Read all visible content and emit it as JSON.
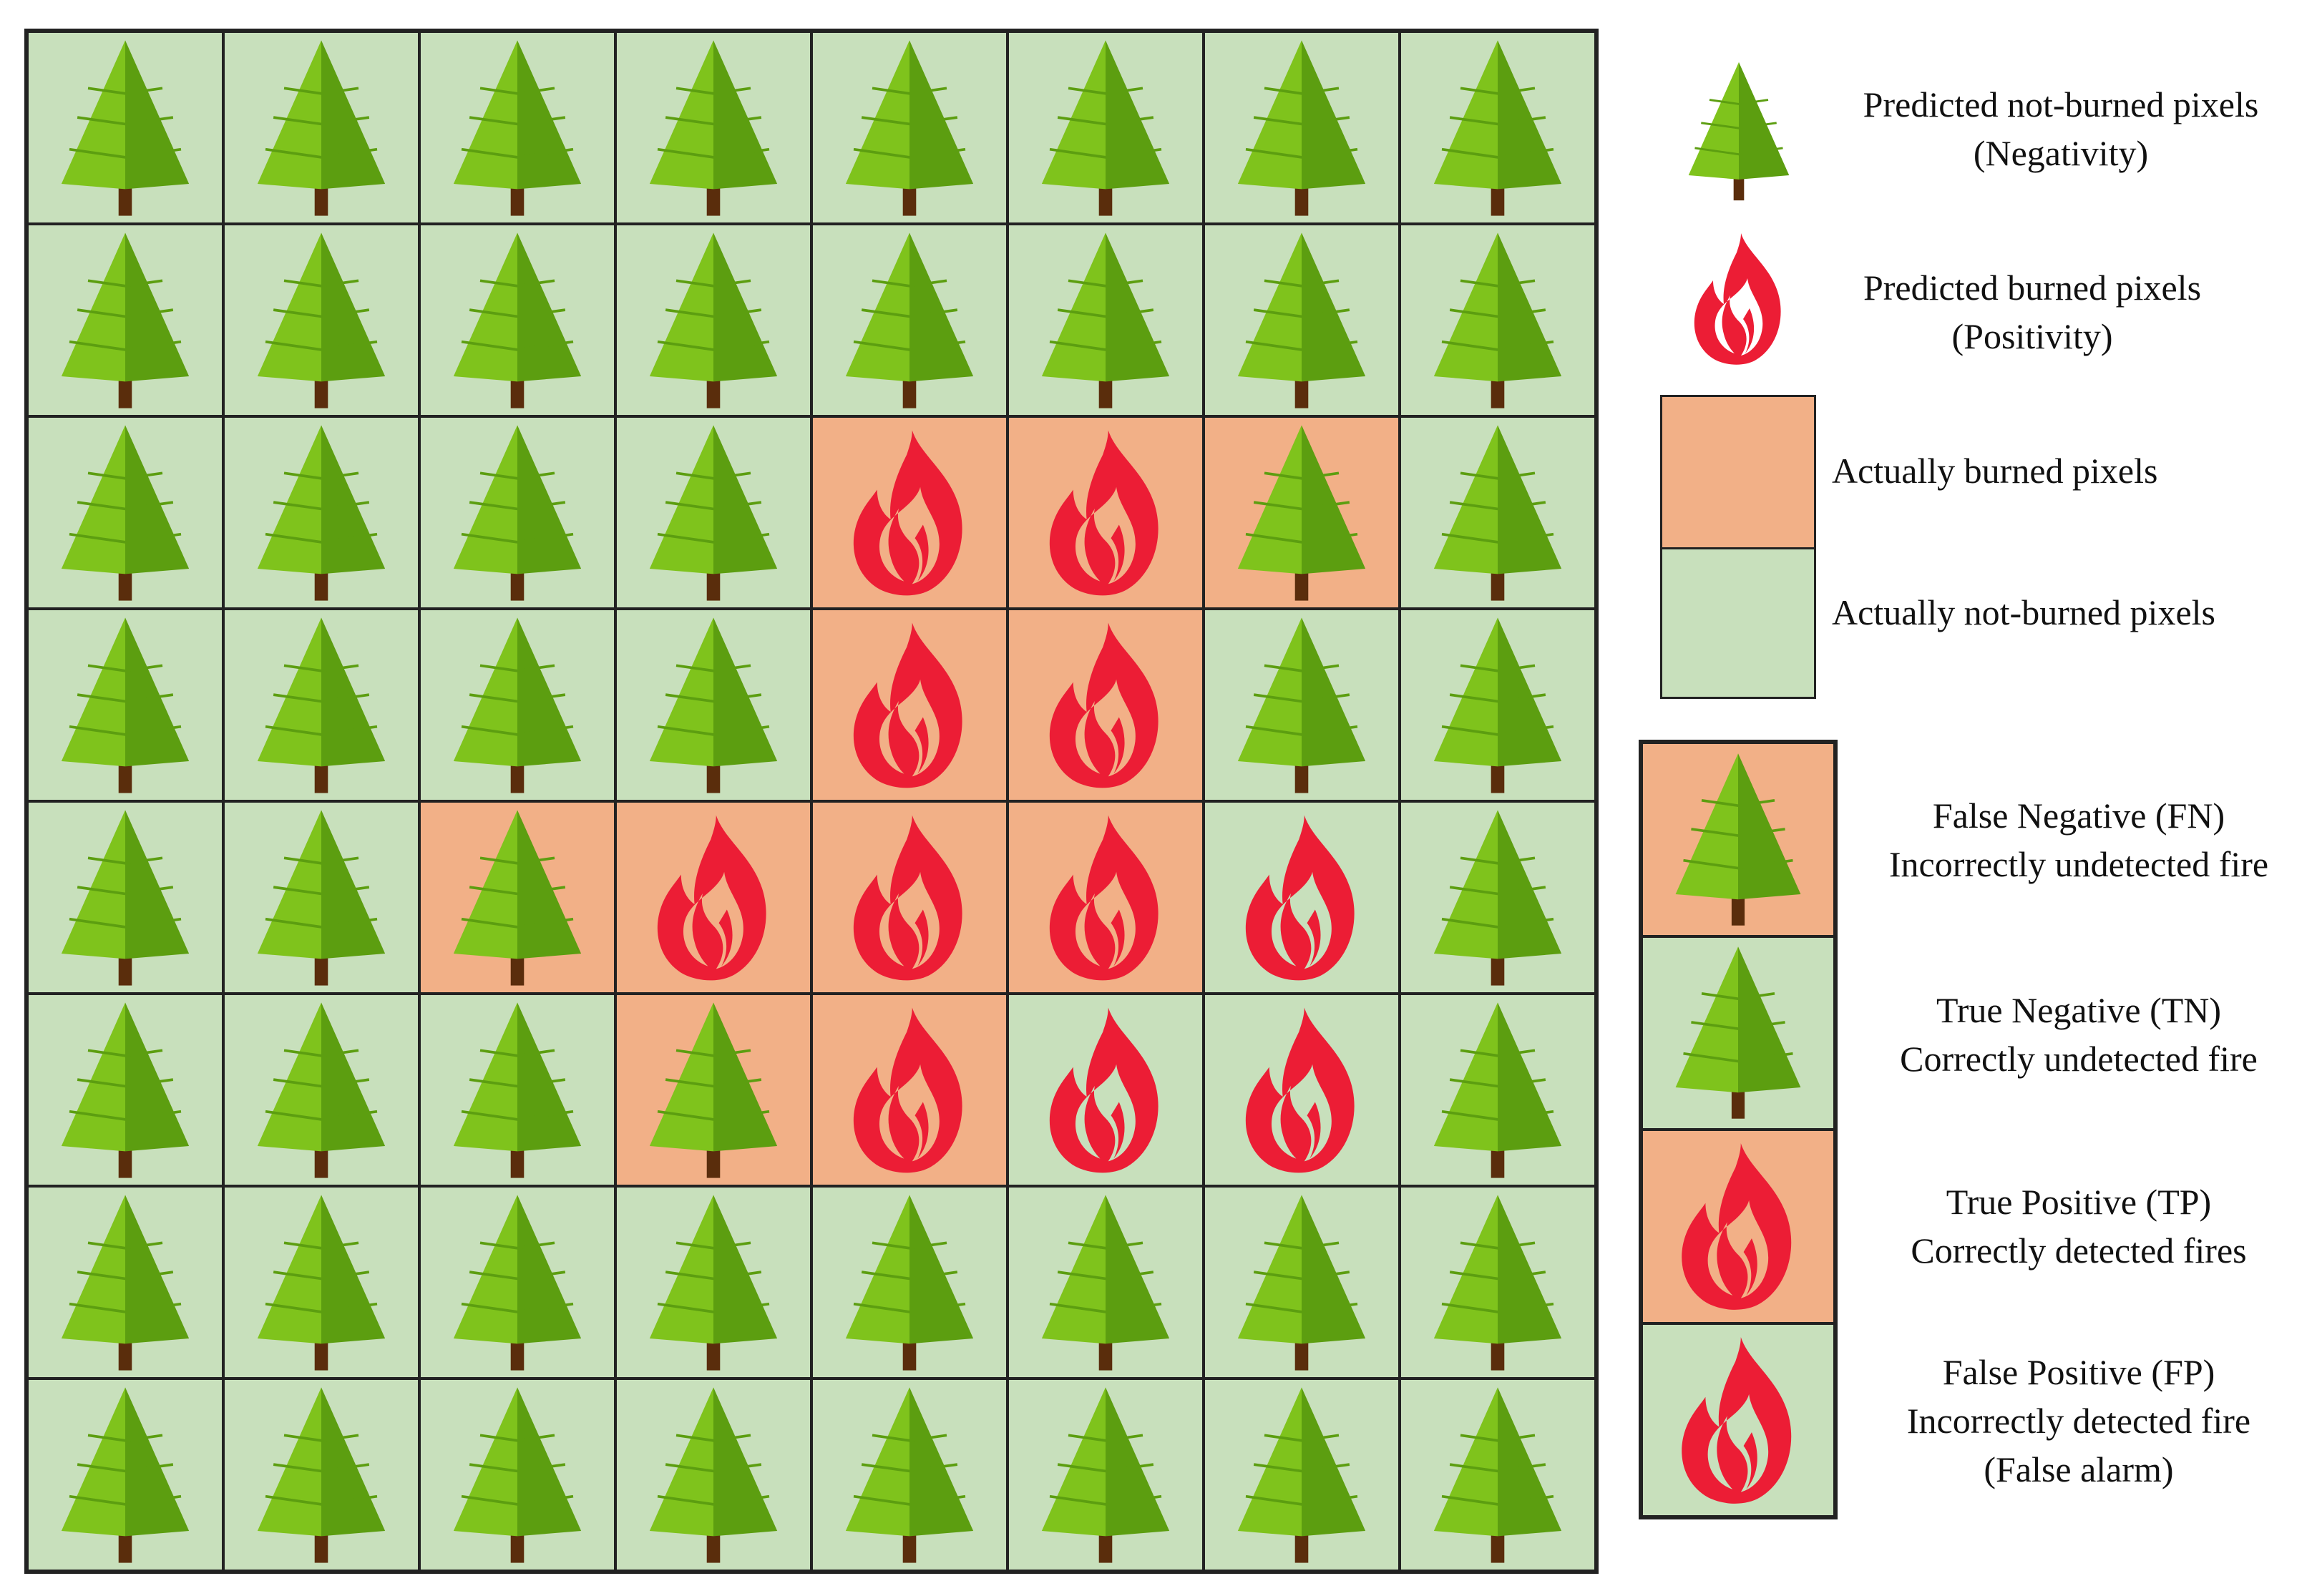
{
  "colors": {
    "burned_bg": "#f2b087",
    "not_burned_bg": "#c8e0bc",
    "tree_light": "#7fc31c",
    "tree_dark": "#5c9e10",
    "trunk": "#5a2d0c",
    "flame": "#ec1d35"
  },
  "grid": {
    "legend_codes": {
      "F": "burned-cell",
      "N": "not-burned-cell",
      "tree": "tree-icon",
      "fire": "fire-icon"
    },
    "rows": [
      [
        "N-tree",
        "N-tree",
        "N-tree",
        "N-tree",
        "N-tree",
        "N-tree",
        "N-tree",
        "N-tree"
      ],
      [
        "N-tree",
        "N-tree",
        "N-tree",
        "N-tree",
        "N-tree",
        "N-tree",
        "N-tree",
        "N-tree"
      ],
      [
        "N-tree",
        "N-tree",
        "N-tree",
        "N-tree",
        "F-fire",
        "F-fire",
        "F-tree",
        "N-tree"
      ],
      [
        "N-tree",
        "N-tree",
        "N-tree",
        "N-tree",
        "F-fire",
        "F-fire",
        "N-tree",
        "N-tree"
      ],
      [
        "N-tree",
        "N-tree",
        "F-tree",
        "F-fire",
        "F-fire",
        "F-fire",
        "N-fire",
        "N-tree"
      ],
      [
        "N-tree",
        "N-tree",
        "N-tree",
        "F-tree",
        "F-fire",
        "N-fire",
        "N-fire",
        "N-tree"
      ],
      [
        "N-tree",
        "N-tree",
        "N-tree",
        "N-tree",
        "N-tree",
        "N-tree",
        "N-tree",
        "N-tree"
      ],
      [
        "N-tree",
        "N-tree",
        "N-tree",
        "N-tree",
        "N-tree",
        "N-tree",
        "N-tree",
        "N-tree"
      ]
    ]
  },
  "legend": {
    "predicted_not_burned": {
      "line1": "Predicted not-burned pixels",
      "line2": "(Negativity)"
    },
    "predicted_burned": {
      "line1": "Predicted burned pixels",
      "line2": "(Positivity)"
    },
    "actually_burned": "Actually burned pixels",
    "actually_not_burned": "Actually not-burned pixels",
    "fn": {
      "line1": "False Negative (FN)",
      "line2": "Incorrectly undetected fire"
    },
    "tn": {
      "line1": "True Negative (TN)",
      "line2": "Correctly undetected fire"
    },
    "tp": {
      "line1": "True Positive (TP)",
      "line2": "Correctly detected fires"
    },
    "fp": {
      "line1": "False Positive (FP)",
      "line2": "Incorrectly detected fire",
      "line3": "(False alarm)"
    }
  }
}
